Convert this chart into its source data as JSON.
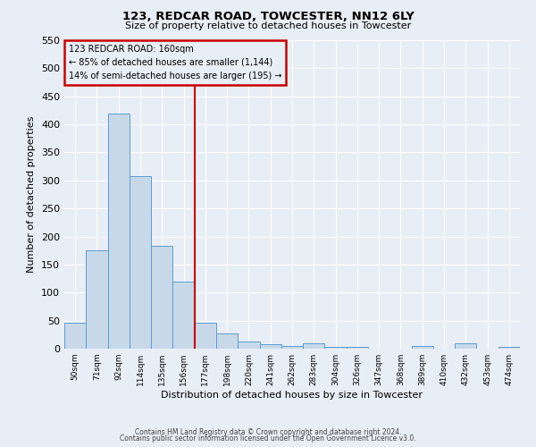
{
  "title": "123, REDCAR ROAD, TOWCESTER, NN12 6LY",
  "subtitle": "Size of property relative to detached houses in Towcester",
  "xlabel": "Distribution of detached houses by size in Towcester",
  "ylabel": "Number of detached properties",
  "bin_labels": [
    "50sqm",
    "71sqm",
    "92sqm",
    "114sqm",
    "135sqm",
    "156sqm",
    "177sqm",
    "198sqm",
    "220sqm",
    "241sqm",
    "262sqm",
    "283sqm",
    "304sqm",
    "326sqm",
    "347sqm",
    "368sqm",
    "389sqm",
    "410sqm",
    "432sqm",
    "453sqm",
    "474sqm"
  ],
  "bar_values": [
    47,
    175,
    420,
    308,
    184,
    120,
    47,
    27,
    13,
    8,
    5,
    10,
    3,
    3,
    0,
    0,
    5,
    0,
    10,
    0,
    3
  ],
  "bar_color": "#c7d9e8",
  "bar_edge_color": "#5b9bd5",
  "vline_x": 5.5,
  "vline_color": "#cc0000",
  "ylim": [
    0,
    550
  ],
  "yticks": [
    0,
    50,
    100,
    150,
    200,
    250,
    300,
    350,
    400,
    450,
    500,
    550
  ],
  "annotation_title": "123 REDCAR ROAD: 160sqm",
  "annotation_line1": "← 85% of detached houses are smaller (1,144)",
  "annotation_line2": "14% of semi-detached houses are larger (195) →",
  "annotation_box_color": "#cc0000",
  "footer_line1": "Contains HM Land Registry data © Crown copyright and database right 2024.",
  "footer_line2": "Contains public sector information licensed under the Open Government Licence v3.0.",
  "bg_color": "#e8eef5",
  "plot_bg_color": "#e8eef5",
  "grid_color": "#ffffff"
}
